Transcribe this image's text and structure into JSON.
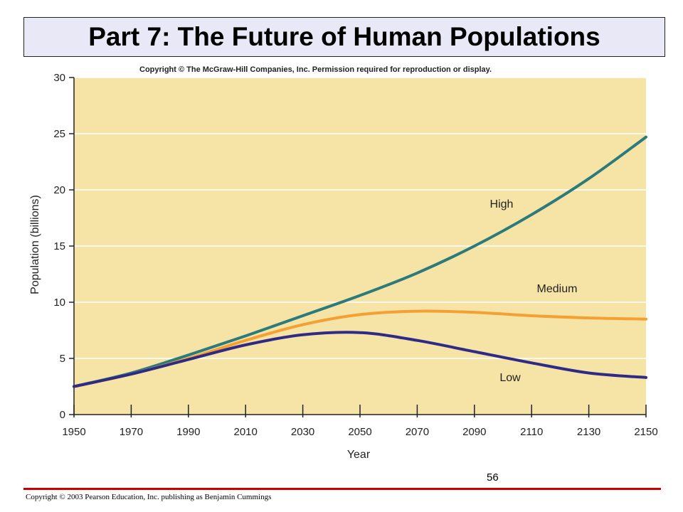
{
  "slide": {
    "title": "Part 7: The Future of Human Populations",
    "page_number": "56",
    "footer": "Copyright © 2003 Pearson Education, Inc. publishing as Benjamin Cummings"
  },
  "colors": {
    "plot_background": "#f6e3a6",
    "high": "#2b7a7c",
    "medium": "#f5a032",
    "low": "#2e2a86",
    "footer_rule": "#cc0000",
    "title_box": "#e8e8f7"
  },
  "chart_data": {
    "type": "line",
    "copyright_note": "Copyright © The McGraw-Hill Companies, Inc. Permission required for reproduction or display.",
    "xlabel": "Year",
    "ylabel": "Population (billions)",
    "xlim": [
      1950,
      2150
    ],
    "ylim": [
      0,
      30
    ],
    "x_ticks": [
      1950,
      1970,
      1990,
      2010,
      2030,
      2050,
      2070,
      2090,
      2110,
      2130,
      2150
    ],
    "y_ticks": [
      0,
      5,
      10,
      15,
      20,
      25,
      30
    ],
    "grid": true,
    "x": [
      1950,
      1970,
      1990,
      2010,
      2030,
      2050,
      2070,
      2090,
      2110,
      2130,
      2150
    ],
    "series": [
      {
        "name": "High",
        "color_key": "high",
        "values": [
          2.5,
          3.7,
          5.3,
          7.0,
          8.8,
          10.6,
          12.6,
          15.0,
          17.8,
          21.0,
          24.7
        ]
      },
      {
        "name": "Medium",
        "color_key": "medium",
        "values": [
          2.5,
          3.6,
          5.0,
          6.6,
          8.0,
          8.9,
          9.2,
          9.1,
          8.8,
          8.6,
          8.5
        ]
      },
      {
        "name": "Low",
        "color_key": "low",
        "values": [
          2.5,
          3.6,
          4.9,
          6.2,
          7.1,
          7.3,
          6.6,
          5.6,
          4.6,
          3.7,
          3.3
        ]
      }
    ]
  }
}
